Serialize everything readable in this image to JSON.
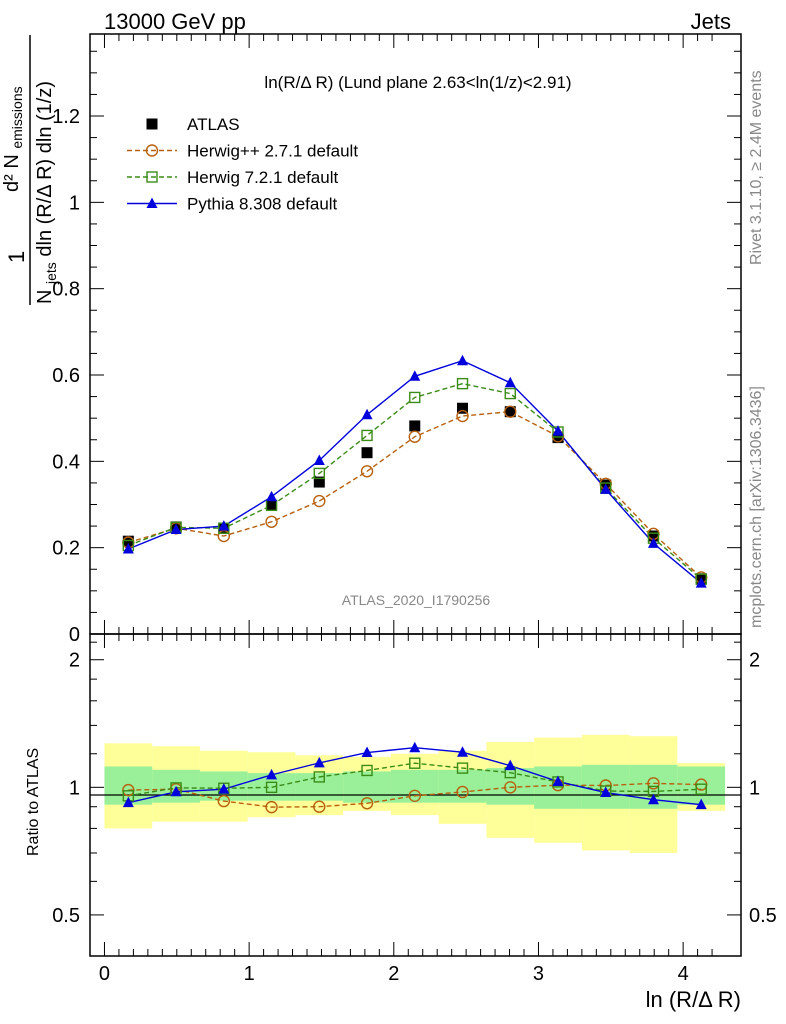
{
  "header": {
    "left": "13000 GeV pp",
    "right": "Jets"
  },
  "side_labels": {
    "rivet": "Rivet 3.1.10, ≥ 2.4M events",
    "mcplots": "mcplots.cern.ch [arXiv:1306.3436]"
  },
  "colors": {
    "atlas": "#000000",
    "herwigpp": "#b8600e",
    "herwig7": "#3a8c17",
    "pythia": "#0000dd",
    "band_inner": "#99f099",
    "band_outer": "#ffff99"
  },
  "chart_data": [
    {
      "type": "scatter",
      "title": "ln(R/Δ R) (Lund plane 2.63<ln(1/z)<2.91)",
      "watermark": "ATLAS_2020_I1790256",
      "ylabel_parts": {
        "numerator": "1",
        "numerator_main": "d² N",
        "numerator_sub": "emissions",
        "den_left": "N",
        "den_sub": "jets",
        "den_mid": "dln (R/Δ R)",
        "den_right": "dln (1/z)"
      },
      "xlim": [
        -0.1,
        4.4
      ],
      "ylim": [
        0,
        1.39
      ],
      "yticks": [
        0,
        0.2,
        0.4,
        0.6,
        0.8,
        1,
        1.2
      ],
      "ytick_labels": [
        "0",
        "0.2",
        "0.4",
        "0.6",
        "0.8",
        "1",
        "1.2"
      ],
      "x": [
        0.165,
        0.495,
        0.825,
        1.155,
        1.485,
        1.815,
        2.145,
        2.475,
        2.805,
        3.135,
        3.465,
        3.795,
        4.125
      ],
      "series": [
        {
          "name": "ATLAS",
          "marker": "square-filled",
          "style": "none",
          "values": [
            0.215,
            0.248,
            0.245,
            0.298,
            0.352,
            0.42,
            0.482,
            0.523,
            0.515,
            0.455,
            0.345,
            0.227,
            0.128
          ]
        },
        {
          "name": "Herwig++ 2.7.1 default",
          "marker": "circle-open",
          "style": "dashed",
          "values": [
            0.212,
            0.245,
            0.227,
            0.26,
            0.308,
            0.377,
            0.457,
            0.505,
            0.515,
            0.458,
            0.348,
            0.232,
            0.131
          ]
        },
        {
          "name": "Herwig 7.2.1 default",
          "marker": "square-open",
          "style": "dashed",
          "values": [
            0.205,
            0.247,
            0.245,
            0.298,
            0.372,
            0.46,
            0.548,
            0.58,
            0.557,
            0.468,
            0.338,
            0.222,
            0.127
          ]
        },
        {
          "name": "Pythia 8.308 default",
          "marker": "triangle-filled",
          "style": "solid",
          "values": [
            0.197,
            0.242,
            0.25,
            0.318,
            0.402,
            0.508,
            0.597,
            0.633,
            0.582,
            0.47,
            0.335,
            0.21,
            0.118
          ]
        }
      ]
    },
    {
      "type": "line",
      "ylabel": "Ratio to ATLAS",
      "xlabel": "ln (R/Δ R)",
      "xlim": [
        -0.1,
        4.4
      ],
      "ylim": [
        0.4,
        2.3
      ],
      "y_scale": "log",
      "xticks": [
        0,
        1,
        2,
        3,
        4
      ],
      "xtick_labels": [
        "0",
        "1",
        "2",
        "3",
        "4"
      ],
      "yticks": [
        0.5,
        1,
        2
      ],
      "ytick_labels": [
        "0.5",
        "1",
        "2"
      ],
      "x": [
        0.165,
        0.495,
        0.825,
        1.155,
        1.485,
        1.815,
        2.145,
        2.475,
        2.805,
        3.135,
        3.465,
        3.795,
        4.125
      ],
      "bin_edges": [
        0.0,
        0.33,
        0.66,
        0.99,
        1.32,
        1.65,
        1.98,
        2.31,
        2.64,
        2.97,
        3.3,
        3.63,
        3.96,
        4.29
      ],
      "band_inner": {
        "low": [
          0.91,
          0.92,
          0.93,
          0.93,
          0.93,
          0.92,
          0.92,
          0.92,
          0.91,
          0.89,
          0.89,
          0.89,
          0.91
        ],
        "high": [
          1.12,
          1.1,
          1.09,
          1.08,
          1.08,
          1.09,
          1.1,
          1.1,
          1.11,
          1.12,
          1.13,
          1.13,
          1.12
        ]
      },
      "band_outer": {
        "low": [
          0.8,
          0.83,
          0.83,
          0.85,
          0.86,
          0.88,
          0.86,
          0.82,
          0.76,
          0.74,
          0.71,
          0.7,
          0.88
        ],
        "high": [
          1.27,
          1.25,
          1.22,
          1.21,
          1.19,
          1.18,
          1.2,
          1.22,
          1.28,
          1.31,
          1.33,
          1.32,
          1.14
        ]
      },
      "series": [
        {
          "name": "Herwig++ 2.7.1 default",
          "marker": "circle-open",
          "style": "dashed",
          "values": [
            0.985,
            0.99,
            0.928,
            0.898,
            0.9,
            0.917,
            0.955,
            0.975,
            1.0,
            1.012,
            1.01,
            1.022,
            1.015
          ]
        },
        {
          "name": "Herwig 7.2.1 default",
          "marker": "square-open",
          "style": "dashed",
          "values": [
            0.955,
            0.997,
            0.995,
            1.0,
            1.058,
            1.096,
            1.14,
            1.11,
            1.083,
            1.03,
            0.98,
            0.978,
            0.99
          ]
        },
        {
          "name": "Pythia 8.308 default",
          "marker": "triangle-filled",
          "style": "solid",
          "values": [
            0.92,
            0.976,
            0.99,
            1.07,
            1.142,
            1.208,
            1.24,
            1.21,
            1.125,
            1.032,
            0.972,
            0.935,
            0.91
          ]
        }
      ]
    }
  ]
}
